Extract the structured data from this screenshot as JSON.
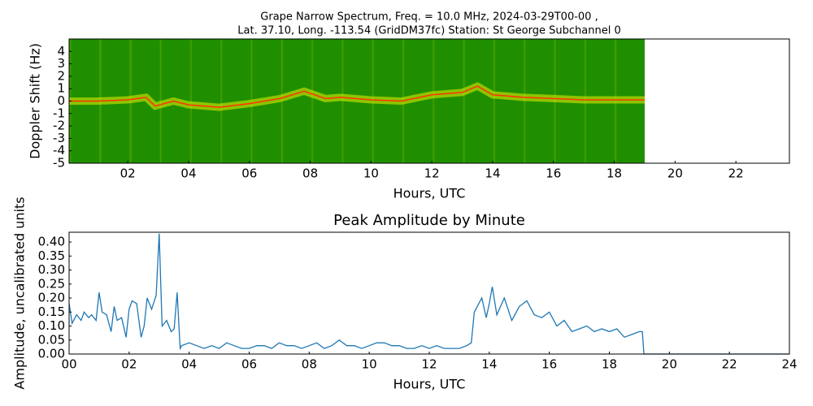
{
  "chart_data": [
    {
      "type": "spectrogram",
      "title": [
        "Grape Narrow Spectrum, Freq. = 10.0 MHz, 2024-03-29T00-00 ,",
        "Lat.  37.10, Long. -113.54 (GridDM37fc) Station: St George Subchannel 0"
      ],
      "xlabel": "Hours, UTC",
      "ylabel": "Doppler Shift (Hz)",
      "x": [
        0.07,
        1,
        2,
        2.6,
        2.9,
        3.5,
        4,
        5,
        6,
        7,
        7.8,
        8.5,
        9,
        10,
        11,
        12,
        13,
        13.5,
        14,
        15,
        16,
        17,
        18,
        19
      ],
      "values": [
        0,
        0,
        0.1,
        0.3,
        -0.4,
        0,
        -0.3,
        -0.5,
        -0.2,
        0.2,
        0.8,
        0.2,
        0.3,
        0.1,
        0,
        0.5,
        0.7,
        1.2,
        0.5,
        0.3,
        0.2,
        0.1,
        0.1,
        0.1
      ],
      "color": "#ff3300",
      "glow_color": "#e8f000",
      "background_color": "#1f8f00",
      "xlim": [
        0.07,
        23.76
      ],
      "ylim": [
        -5,
        5
      ],
      "xticks": [
        {
          "value": 2,
          "label": "02"
        },
        {
          "value": 4,
          "label": "04"
        },
        {
          "value": 6,
          "label": "06"
        },
        {
          "value": 8,
          "label": "08"
        },
        10,
        12,
        14,
        16,
        18,
        20,
        22
      ],
      "yticks": [
        4,
        3,
        2,
        1,
        0,
        -1,
        -2,
        -3,
        -4,
        -5
      ]
    },
    {
      "type": "line",
      "title": "Peak Amplitude by Minute",
      "xlabel": "Hours, UTC",
      "ylabel": "Amplitude, uncalibrated units",
      "x": [
        0,
        0.1,
        0.25,
        0.4,
        0.5,
        0.65,
        0.75,
        0.9,
        1.0,
        1.1,
        1.25,
        1.4,
        1.5,
        1.6,
        1.75,
        1.9,
        2.0,
        2.1,
        2.25,
        2.4,
        2.5,
        2.6,
        2.75,
        2.9,
        3.0,
        3.1,
        3.25,
        3.4,
        3.5,
        3.6,
        3.7,
        3.75,
        4.0,
        4.25,
        4.5,
        4.75,
        5.0,
        5.25,
        5.5,
        5.75,
        6.0,
        6.25,
        6.5,
        6.75,
        7.0,
        7.25,
        7.5,
        7.75,
        8.0,
        8.25,
        8.5,
        8.75,
        9.0,
        9.25,
        9.5,
        9.75,
        10.0,
        10.25,
        10.5,
        10.75,
        11.0,
        11.25,
        11.5,
        11.75,
        12.0,
        12.25,
        12.5,
        12.75,
        13.0,
        13.25,
        13.4,
        13.5,
        13.75,
        13.9,
        14.0,
        14.1,
        14.25,
        14.5,
        14.75,
        15.0,
        15.25,
        15.5,
        15.75,
        16.0,
        16.25,
        16.5,
        16.75,
        17.0,
        17.25,
        17.5,
        17.75,
        18.0,
        18.25,
        18.5,
        18.75,
        19.0,
        19.1,
        19.15,
        20,
        24
      ],
      "values": [
        0.18,
        0.11,
        0.14,
        0.12,
        0.15,
        0.13,
        0.14,
        0.12,
        0.22,
        0.15,
        0.14,
        0.08,
        0.17,
        0.12,
        0.13,
        0.06,
        0.16,
        0.19,
        0.18,
        0.06,
        0.1,
        0.2,
        0.16,
        0.21,
        0.43,
        0.1,
        0.12,
        0.08,
        0.09,
        0.22,
        0.02,
        0.03,
        0.04,
        0.03,
        0.02,
        0.03,
        0.02,
        0.04,
        0.03,
        0.02,
        0.02,
        0.03,
        0.03,
        0.02,
        0.04,
        0.03,
        0.03,
        0.02,
        0.03,
        0.04,
        0.02,
        0.03,
        0.05,
        0.03,
        0.03,
        0.02,
        0.03,
        0.04,
        0.04,
        0.03,
        0.03,
        0.02,
        0.02,
        0.03,
        0.02,
        0.03,
        0.02,
        0.02,
        0.02,
        0.03,
        0.04,
        0.15,
        0.2,
        0.13,
        0.18,
        0.24,
        0.14,
        0.2,
        0.12,
        0.17,
        0.19,
        0.14,
        0.13,
        0.15,
        0.1,
        0.12,
        0.08,
        0.09,
        0.1,
        0.08,
        0.09,
        0.08,
        0.09,
        0.06,
        0.07,
        0.08,
        0.08,
        0.0,
        0.0,
        0.0
      ],
      "color": "#1f77b4",
      "xlim": [
        0,
        24
      ],
      "ylim": [
        0,
        0.435
      ],
      "xticks": [
        {
          "value": 0,
          "label": "00"
        },
        {
          "value": 2,
          "label": "02"
        },
        {
          "value": 4,
          "label": "04"
        },
        {
          "value": 6,
          "label": "06"
        },
        {
          "value": 8,
          "label": "08"
        },
        10,
        12,
        14,
        16,
        18,
        20,
        22,
        24
      ],
      "yticks": [
        {
          "value": 0,
          "label": "0.00"
        },
        {
          "value": 0.05,
          "label": "0.05"
        },
        {
          "value": 0.1,
          "label": "0.10"
        },
        {
          "value": 0.15,
          "label": "0.15"
        },
        {
          "value": 0.2,
          "label": "0.20"
        },
        {
          "value": 0.25,
          "label": "0.25"
        },
        {
          "value": 0.3,
          "label": "0.30"
        },
        {
          "value": 0.35,
          "label": "0.35"
        },
        {
          "value": 0.4,
          "label": "0.40"
        }
      ]
    }
  ]
}
